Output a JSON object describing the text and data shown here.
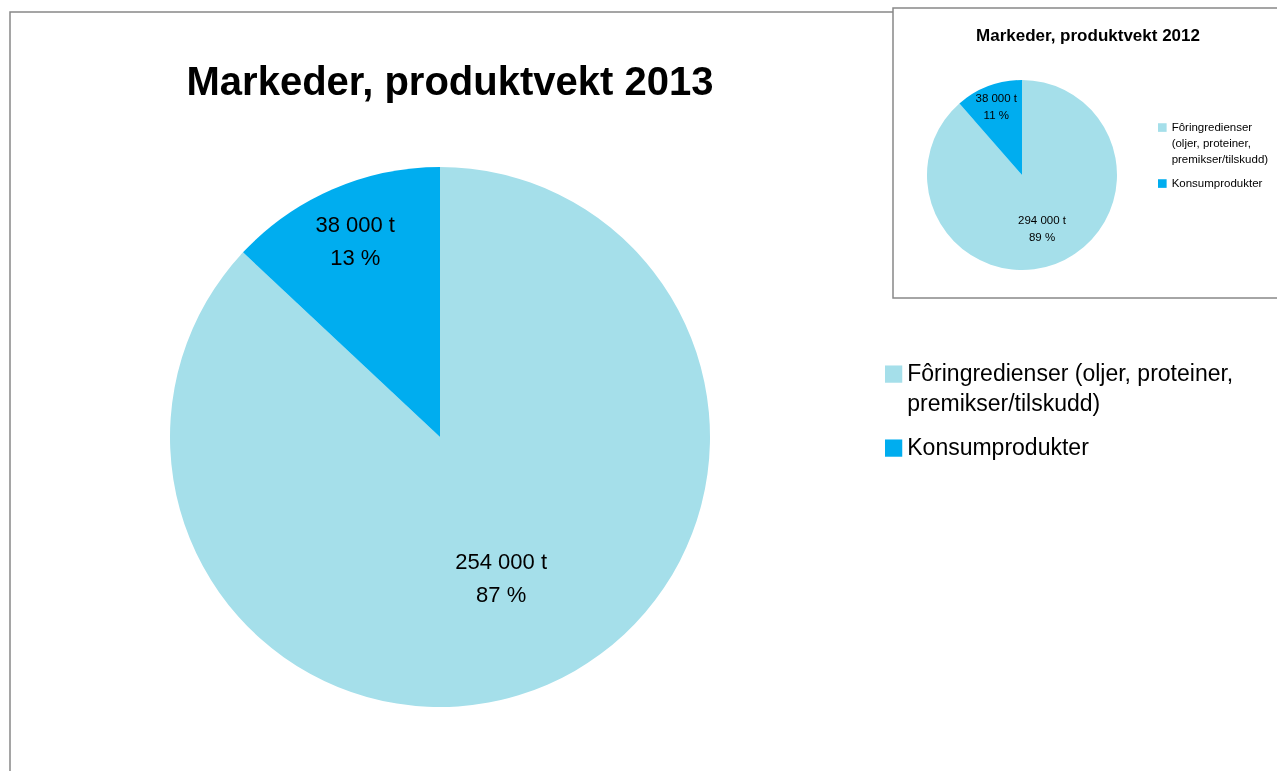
{
  "chart_data": [
    {
      "type": "pie",
      "title": "Markeder, produktvekt 2013",
      "categories": [
        "Fôringredienser (oljer, proteiner, premikser/tilskudd)",
        "Konsumprodukter"
      ],
      "values": [
        254000,
        38000
      ],
      "colors": [
        "#a5dfea",
        "#00adef"
      ],
      "value_labels": [
        "254 000 t\n87 %",
        "38 000 t\n13 %"
      ],
      "legend": "right"
    },
    {
      "type": "pie",
      "title": "Markeder, produktvekt 2012",
      "categories": [
        "Fôringredienser (oljer, proteiner, premikser/tilskudd)",
        "Konsumprodukter"
      ],
      "values": [
        294000,
        38000
      ],
      "colors": [
        "#a5dfea",
        "#00adef"
      ],
      "value_labels": [
        "294 000 t\n89 %",
        "38 000 t\n11 %"
      ],
      "legend": "right"
    }
  ]
}
